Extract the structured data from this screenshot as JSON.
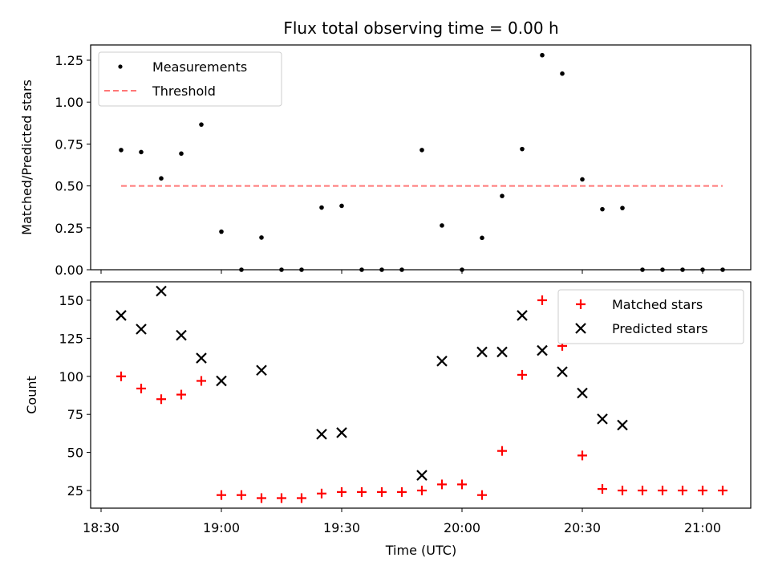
{
  "chart_data": [
    {
      "type": "scatter",
      "title": "Flux total observing time = 0.00 h",
      "xlabel": "",
      "ylabel": "Matched/Predicted stars",
      "ylim": [
        0,
        1.35
      ],
      "yticks": [
        "0.00",
        "0.25",
        "0.50",
        "0.75",
        "1.00",
        "1.25"
      ],
      "legend_position": "upper-left",
      "series": [
        {
          "name": "Measurements",
          "color": "#000000",
          "marker": "dot",
          "points": [
            {
              "x": "18:35",
              "y": 0.714
            },
            {
              "x": "18:40",
              "y": 0.702
            },
            {
              "x": "18:45",
              "y": 0.545
            },
            {
              "x": "18:50",
              "y": 0.693
            },
            {
              "x": "18:55",
              "y": 0.866
            },
            {
              "x": "19:00",
              "y": 0.227
            },
            {
              "x": "19:05",
              "y": 0.0
            },
            {
              "x": "19:10",
              "y": 0.192
            },
            {
              "x": "19:15",
              "y": 0.0
            },
            {
              "x": "19:20",
              "y": 0.0
            },
            {
              "x": "19:25",
              "y": 0.371
            },
            {
              "x": "19:30",
              "y": 0.381
            },
            {
              "x": "19:35",
              "y": 0.0
            },
            {
              "x": "19:40",
              "y": 0.0
            },
            {
              "x": "19:45",
              "y": 0.0
            },
            {
              "x": "19:50",
              "y": 0.714
            },
            {
              "x": "19:55",
              "y": 0.264
            },
            {
              "x": "20:00",
              "y": 0.0
            },
            {
              "x": "20:05",
              "y": 0.19
            },
            {
              "x": "20:10",
              "y": 0.44
            },
            {
              "x": "20:15",
              "y": 0.72
            },
            {
              "x": "20:20",
              "y": 1.28
            },
            {
              "x": "20:25",
              "y": 1.17
            },
            {
              "x": "20:30",
              "y": 0.539
            },
            {
              "x": "20:35",
              "y": 0.361
            },
            {
              "x": "20:40",
              "y": 0.368
            },
            {
              "x": "20:45",
              "y": 0.0
            },
            {
              "x": "20:50",
              "y": 0.0
            },
            {
              "x": "20:55",
              "y": 0.0
            },
            {
              "x": "21:00",
              "y": 0.0
            },
            {
              "x": "21:05",
              "y": 0.0
            }
          ]
        },
        {
          "name": "Threshold",
          "color": "#ff7777",
          "style": "dashed",
          "points": [
            {
              "x": "18:35",
              "y": 0.5
            },
            {
              "x": "21:05",
              "y": 0.5
            }
          ]
        }
      ]
    },
    {
      "type": "scatter",
      "title": "",
      "xlabel": "Time (UTC)",
      "ylabel": "Count",
      "ylim": [
        12,
        163
      ],
      "yticks": [
        "25",
        "50",
        "75",
        "100",
        "125",
        "150"
      ],
      "xticks": [
        "18:30",
        "19:00",
        "19:30",
        "20:00",
        "20:30",
        "21:00"
      ],
      "legend_position": "upper-right",
      "series": [
        {
          "name": "Matched stars",
          "color": "#ff0000",
          "marker": "plus",
          "points": [
            {
              "x": "18:35",
              "y": 100
            },
            {
              "x": "18:40",
              "y": 92
            },
            {
              "x": "18:45",
              "y": 85
            },
            {
              "x": "18:50",
              "y": 88
            },
            {
              "x": "18:55",
              "y": 97
            },
            {
              "x": "19:00",
              "y": 22
            },
            {
              "x": "19:05",
              "y": 22
            },
            {
              "x": "19:10",
              "y": 20
            },
            {
              "x": "19:15",
              "y": 20
            },
            {
              "x": "19:20",
              "y": 20
            },
            {
              "x": "19:25",
              "y": 23
            },
            {
              "x": "19:30",
              "y": 24
            },
            {
              "x": "19:35",
              "y": 24
            },
            {
              "x": "19:40",
              "y": 24
            },
            {
              "x": "19:45",
              "y": 24
            },
            {
              "x": "19:50",
              "y": 25
            },
            {
              "x": "19:55",
              "y": 29
            },
            {
              "x": "20:00",
              "y": 29
            },
            {
              "x": "20:05",
              "y": 22
            },
            {
              "x": "20:10",
              "y": 51
            },
            {
              "x": "20:15",
              "y": 101
            },
            {
              "x": "20:20",
              "y": 150
            },
            {
              "x": "20:25",
              "y": 120
            },
            {
              "x": "20:30",
              "y": 48
            },
            {
              "x": "20:35",
              "y": 26
            },
            {
              "x": "20:40",
              "y": 25
            },
            {
              "x": "20:45",
              "y": 25
            },
            {
              "x": "20:50",
              "y": 25
            },
            {
              "x": "20:55",
              "y": 25
            },
            {
              "x": "21:00",
              "y": 25
            },
            {
              "x": "21:05",
              "y": 25
            }
          ]
        },
        {
          "name": "Predicted stars",
          "color": "#000000",
          "marker": "x",
          "points": [
            {
              "x": "18:35",
              "y": 140
            },
            {
              "x": "18:40",
              "y": 131
            },
            {
              "x": "18:45",
              "y": 156
            },
            {
              "x": "18:50",
              "y": 127
            },
            {
              "x": "18:55",
              "y": 112
            },
            {
              "x": "19:00",
              "y": 97
            },
            {
              "x": "19:10",
              "y": 104
            },
            {
              "x": "19:25",
              "y": 62
            },
            {
              "x": "19:30",
              "y": 63
            },
            {
              "x": "19:50",
              "y": 35
            },
            {
              "x": "19:55",
              "y": 110
            },
            {
              "x": "20:05",
              "y": 116
            },
            {
              "x": "20:10",
              "y": 116
            },
            {
              "x": "20:15",
              "y": 140
            },
            {
              "x": "20:20",
              "y": 117
            },
            {
              "x": "20:25",
              "y": 103
            },
            {
              "x": "20:30",
              "y": 89
            },
            {
              "x": "20:35",
              "y": 72
            },
            {
              "x": "20:40",
              "y": 68
            }
          ]
        }
      ]
    }
  ]
}
